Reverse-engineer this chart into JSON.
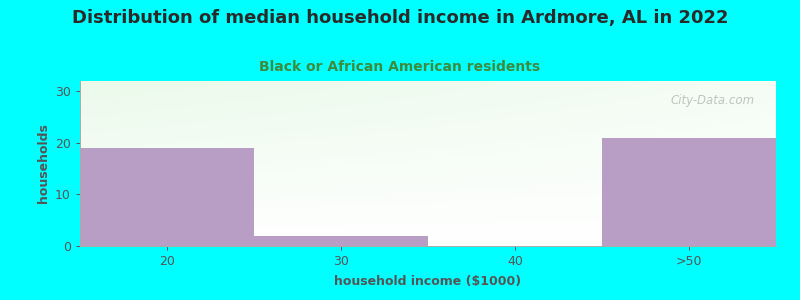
{
  "title": "Distribution of median household income in Ardmore, AL in 2022",
  "subtitle": "Black or African American residents",
  "xlabel": "household income ($1000)",
  "ylabel": "households",
  "background_color": "#00FFFF",
  "bar_color": "#b89ec4",
  "categories": [
    "20",
    "30",
    "40",
    ">50"
  ],
  "values": [
    19,
    2,
    0,
    21
  ],
  "ylim": [
    0,
    32
  ],
  "yticks": [
    0,
    10,
    20,
    30
  ],
  "title_color": "#2a2a2a",
  "subtitle_color": "#3d8c3d",
  "axis_label_color": "#555555",
  "tick_color": "#555555",
  "watermark": "City-Data.com",
  "title_fontsize": 13,
  "subtitle_fontsize": 10,
  "label_fontsize": 9,
  "tick_fontsize": 9
}
